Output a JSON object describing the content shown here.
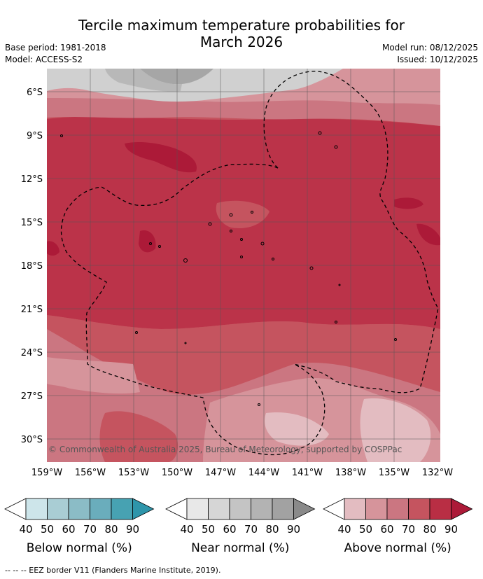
{
  "title_line1": "Tercile maximum temperature probabilities for",
  "title_line2": "March 2026",
  "base_period": "Base period: 1981-2018",
  "model": "Model: ACCESS-S2",
  "model_run": "Model run: 08/12/2025",
  "issued": "Issued: 10/12/2025",
  "copyright": "© Commonwealth of Australia 2025, Bureau of Meteorology, supported by COSPPac",
  "lat_labels": [
    "6°S",
    "9°S",
    "12°S",
    "15°S",
    "18°S",
    "21°S",
    "24°S",
    "27°S",
    "30°S"
  ],
  "lon_labels": [
    "159°W",
    "156°W",
    "153°W",
    "150°W",
    "147°W",
    "144°W",
    "141°W",
    "138°W",
    "135°W",
    "132°W"
  ],
  "legends": [
    {
      "title": "Below normal (%)",
      "ticks": [
        "40",
        "50",
        "60",
        "70",
        "80",
        "90"
      ],
      "colors": [
        "#cde5ea",
        "#a9cdd4",
        "#8bbcc6",
        "#6aadbc",
        "#47a2b2",
        "#2e95aa"
      ]
    },
    {
      "title": "Near normal (%)",
      "ticks": [
        "40",
        "50",
        "60",
        "70",
        "80",
        "90"
      ],
      "colors": [
        "#e8e8e8",
        "#d6d6d6",
        "#c4c4c4",
        "#b3b3b3",
        "#a2a2a2",
        "#8a8a8a"
      ]
    },
    {
      "title": "Above normal (%)",
      "ticks": [
        "40",
        "50",
        "60",
        "70",
        "80",
        "90"
      ],
      "colors": [
        "#e3bcc1",
        "#d6949b",
        "#cb7681",
        "#c5545f",
        "#b92e44",
        "#ac1a38"
      ]
    }
  ],
  "footnote": "-- -- -- EEZ border V11 (Flanders Marine Institute, 2019).",
  "colors": {
    "above_40": "#e3bcc1",
    "above_50": "#d6949b",
    "above_60": "#cb7681",
    "above_70": "#c5545f",
    "above_80": "#bb3349",
    "above_90": "#ac1a38",
    "near_50": "#d0d0d0",
    "near_60": "#b8b8b8",
    "near_70": "#a6a6a6"
  }
}
